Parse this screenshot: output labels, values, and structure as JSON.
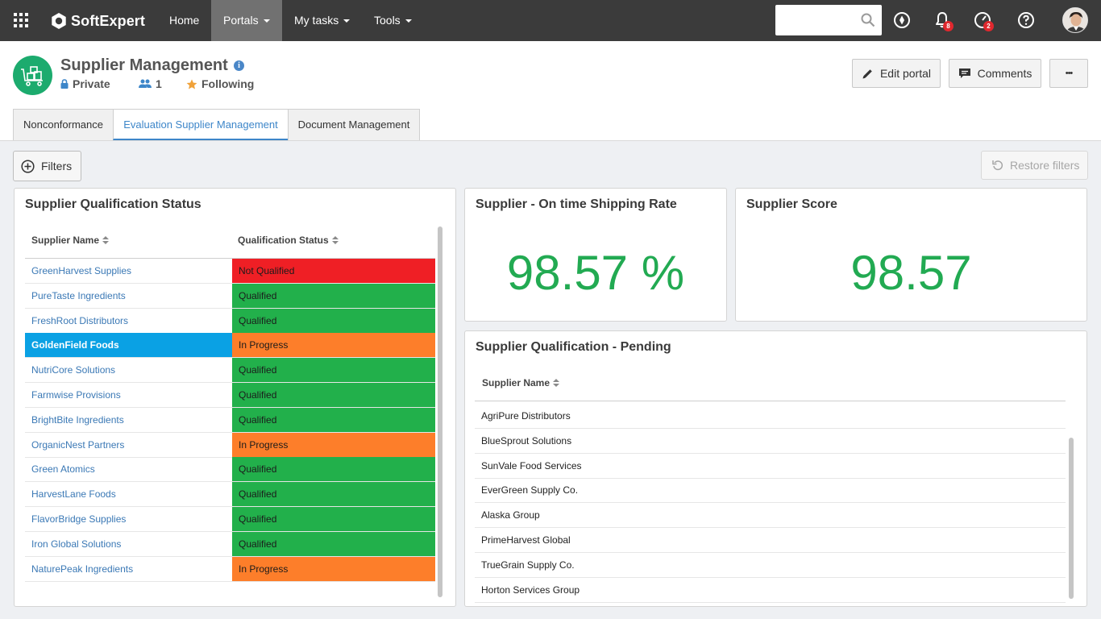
{
  "topbar": {
    "brand": "SoftExpert",
    "nav": [
      {
        "label": "Home",
        "active": false,
        "caret": false
      },
      {
        "label": "Portals",
        "active": true,
        "caret": true
      },
      {
        "label": "My tasks",
        "active": false,
        "caret": true
      },
      {
        "label": "Tools",
        "active": false,
        "caret": true
      }
    ],
    "search_value": "",
    "notifications_count": "8",
    "tasks_count": "2"
  },
  "portal": {
    "title": "Supplier Management",
    "privacy": "Private",
    "members": "1",
    "following": "Following",
    "edit_label": "Edit portal",
    "comments_label": "Comments",
    "more_label": "•••"
  },
  "tabs": [
    {
      "label": "Nonconformance",
      "active": false
    },
    {
      "label": "Evaluation Supplier Management",
      "active": true
    },
    {
      "label": "Document Management",
      "active": false
    }
  ],
  "toolbar": {
    "filters_label": "Filters",
    "restore_label": "Restore filters"
  },
  "qualification": {
    "title": "Supplier Qualification Status",
    "col_name": "Supplier Name",
    "col_status": "Qualification Status",
    "rows": [
      {
        "name": "GreenHarvest Supplies",
        "status": "Not Qualified",
        "color": "#ef1f25"
      },
      {
        "name": "PureTaste Ingredients",
        "status": "Qualified",
        "color": "#22b04b"
      },
      {
        "name": "FreshRoot Distributors",
        "status": "Qualified",
        "color": "#22b04b"
      },
      {
        "name": "GoldenField Foods",
        "status": "In Progress",
        "color": "#fd7e2a",
        "selected": true
      },
      {
        "name": "NutriCore Solutions",
        "status": "Qualified",
        "color": "#22b04b"
      },
      {
        "name": "Farmwise Provisions",
        "status": "Qualified",
        "color": "#22b04b"
      },
      {
        "name": "BrightBite Ingredients",
        "status": "Qualified",
        "color": "#22b04b"
      },
      {
        "name": "OrganicNest Partners",
        "status": "In Progress",
        "color": "#fd7e2a"
      },
      {
        "name": "Green Atomics",
        "status": "Qualified",
        "color": "#22b04b"
      },
      {
        "name": "HarvestLane Foods",
        "status": "Qualified",
        "color": "#22b04b"
      },
      {
        "name": "FlavorBridge Supplies",
        "status": "Qualified",
        "color": "#22b04b"
      },
      {
        "name": "Iron Global Solutions",
        "status": "Qualified",
        "color": "#22b04b"
      },
      {
        "name": "NaturePeak Ingredients",
        "status": "In Progress",
        "color": "#fd7e2a"
      }
    ]
  },
  "shipping": {
    "title": "Supplier - On time Shipping Rate",
    "value": "98.57 %"
  },
  "score": {
    "title": "Supplier Score",
    "value": "98.57"
  },
  "pending": {
    "title": "Supplier Qualification - Pending",
    "col_name": "Supplier Name",
    "rows": [
      "AgriPure Distributors",
      "BlueSprout Solutions",
      "SunVale Food Services",
      "EverGreen Supply Co.",
      "Alaska Group",
      "PrimeHarvest Global",
      "TrueGrain Supply Co.",
      "Horton Services Group"
    ]
  },
  "colors": {
    "accent": "#3d86c9",
    "value_green": "#22aa52",
    "topbar": "#3b3b3b",
    "portal_icon": "#1cab6e"
  }
}
